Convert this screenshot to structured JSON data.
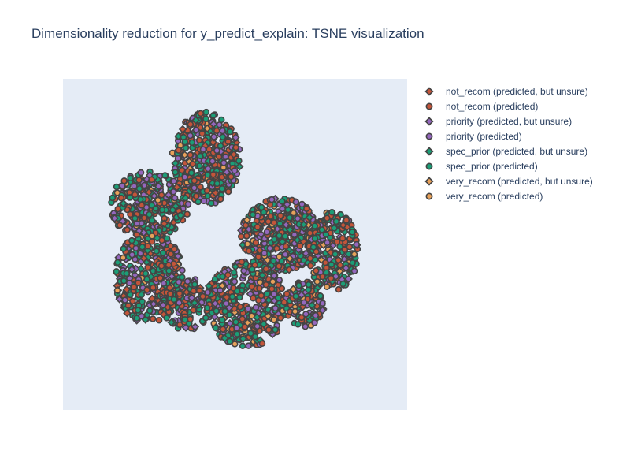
{
  "title": "Dimensionality reduction for y_predict_explain: TSNE visualization",
  "chart_data": {
    "type": "scatter",
    "title": "Dimensionality reduction for y_predict_explain: TSNE visualization",
    "xlabel": "",
    "ylabel": "",
    "grid": false,
    "legend_position": "right",
    "plot_background": "#e5ecf6",
    "marker_outline": "#444444",
    "series": [
      {
        "name": "not_recom (predicted, but unsure)",
        "symbol": "diamond",
        "color": "#c4553a",
        "weight": 5
      },
      {
        "name": "not_recom (predicted)",
        "symbol": "circle",
        "color": "#c4553a",
        "weight": 28
      },
      {
        "name": "priority (predicted, but unsure)",
        "symbol": "diamond",
        "color": "#9467bd",
        "weight": 9
      },
      {
        "name": "priority (predicted)",
        "symbol": "circle",
        "color": "#9467bd",
        "weight": 16
      },
      {
        "name": "spec_prior (predicted, but unsure)",
        "symbol": "diamond",
        "color": "#1b9e77",
        "weight": 6
      },
      {
        "name": "spec_prior (predicted)",
        "symbol": "circle",
        "color": "#1b9e77",
        "weight": 30
      },
      {
        "name": "very_recom (predicted, but unsure)",
        "symbol": "diamond",
        "color": "#e8a15a",
        "weight": 2
      },
      {
        "name": "very_recom (predicted)",
        "symbol": "circle",
        "color": "#e8a15a",
        "weight": 4
      }
    ],
    "clusters": [
      {
        "cx": -5,
        "cy": 13,
        "rx": 6,
        "ry": 7,
        "n": 420
      },
      {
        "cx": 8,
        "cy": 1.5,
        "rx": 7,
        "ry": 5.5,
        "n": 420
      },
      {
        "cx": 2,
        "cy": -9,
        "rx": 7,
        "ry": 6.5,
        "n": 400
      },
      {
        "cx": -15,
        "cy": 6,
        "rx": 7,
        "ry": 5,
        "n": 320
      },
      {
        "cx": -15,
        "cy": -5,
        "rx": 6,
        "ry": 7,
        "n": 360
      },
      {
        "cx": 17,
        "cy": -1,
        "rx": 4.5,
        "ry": 6,
        "n": 240
      },
      {
        "cx": -8,
        "cy": -9,
        "rx": 5,
        "ry": 4,
        "n": 150
      },
      {
        "cx": 12,
        "cy": -9,
        "rx": 3.5,
        "ry": 3.5,
        "n": 110
      }
    ],
    "xlim": [
      -30,
      30
    ],
    "ylim": [
      -25,
      25
    ]
  }
}
